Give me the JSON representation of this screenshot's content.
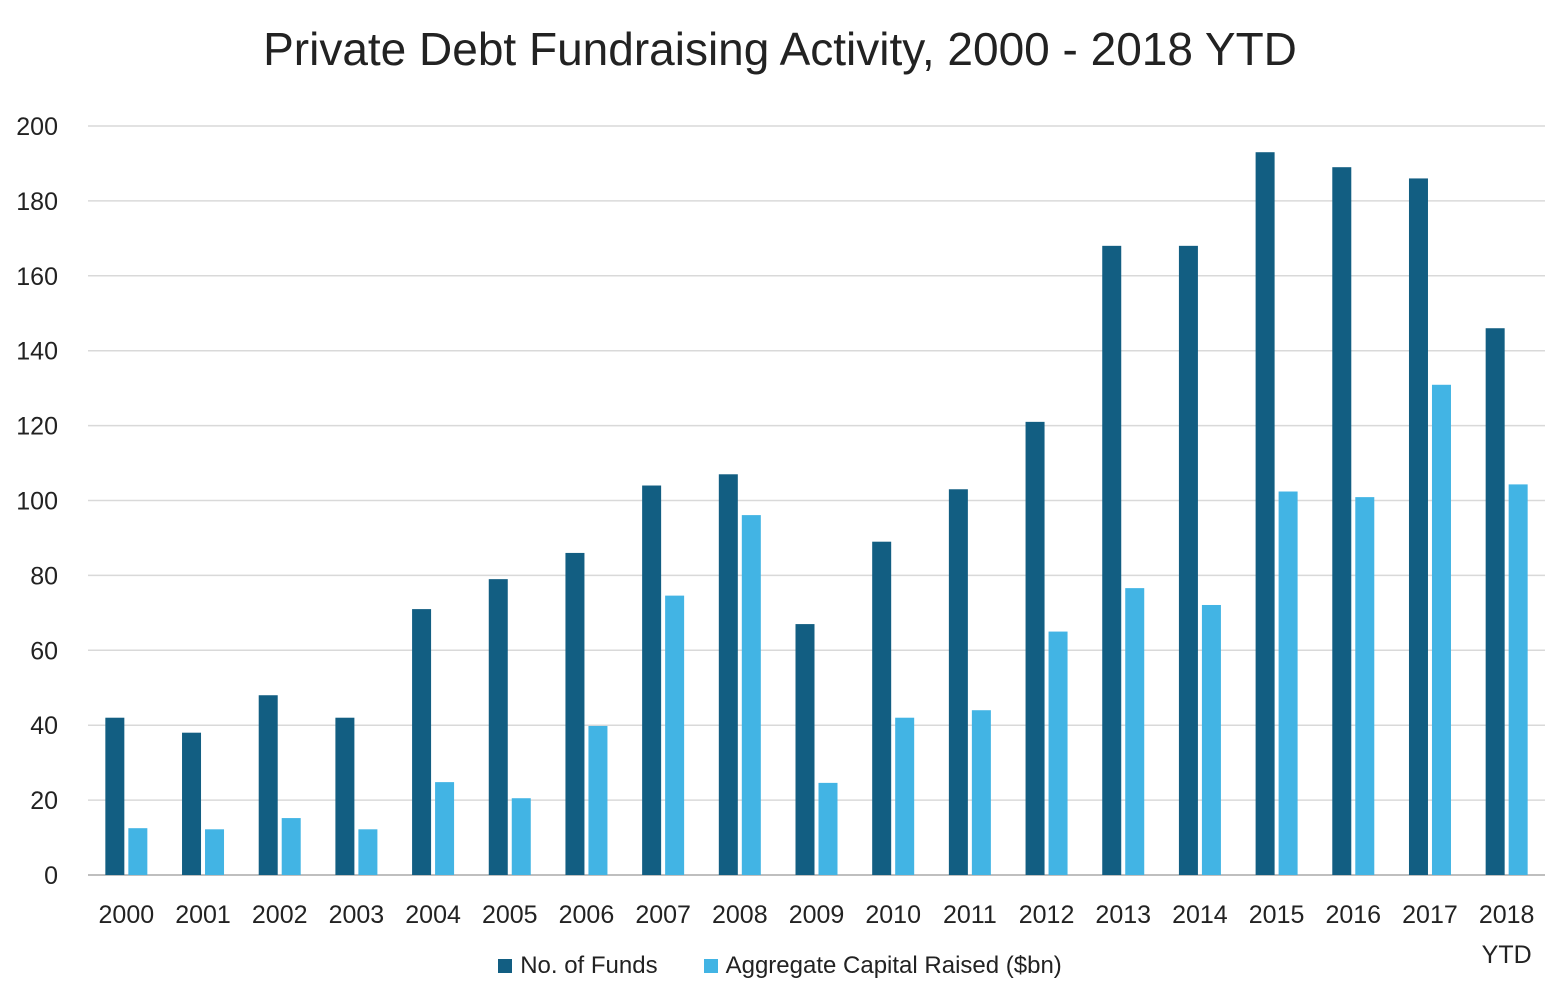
{
  "chart_data": {
    "type": "bar",
    "title": "Private Debt Fundraising Activity, 2000 - 2018 YTD",
    "xlabel": "",
    "ylabel": "",
    "ylim": [
      0,
      200
    ],
    "yticks": [
      0,
      20,
      40,
      60,
      80,
      100,
      120,
      140,
      160,
      180,
      200
    ],
    "grid": true,
    "legend_position": "bottom",
    "categories": [
      "2000",
      "2001",
      "2002",
      "2003",
      "2004",
      "2005",
      "2006",
      "2007",
      "2008",
      "2009",
      "2010",
      "2011",
      "2012",
      "2013",
      "2014",
      "2015",
      "2016",
      "2017",
      "2018 YTD"
    ],
    "series": [
      {
        "name": "No. of Funds",
        "color": "#125e82",
        "values": [
          42,
          38,
          48,
          42,
          71,
          79,
          86,
          104,
          107,
          67,
          89,
          103,
          121,
          168,
          168,
          193,
          189,
          186,
          146
        ]
      },
      {
        "name": "Aggregate Capital Raised ($bn)",
        "color": "#42b4e4",
        "values": [
          12.5,
          12.2,
          15.2,
          12.2,
          24.8,
          20.5,
          39.8,
          74.6,
          96.1,
          24.6,
          42,
          44,
          65,
          76.6,
          72.1,
          102.4,
          100.9,
          130.9,
          104.3
        ]
      }
    ]
  }
}
